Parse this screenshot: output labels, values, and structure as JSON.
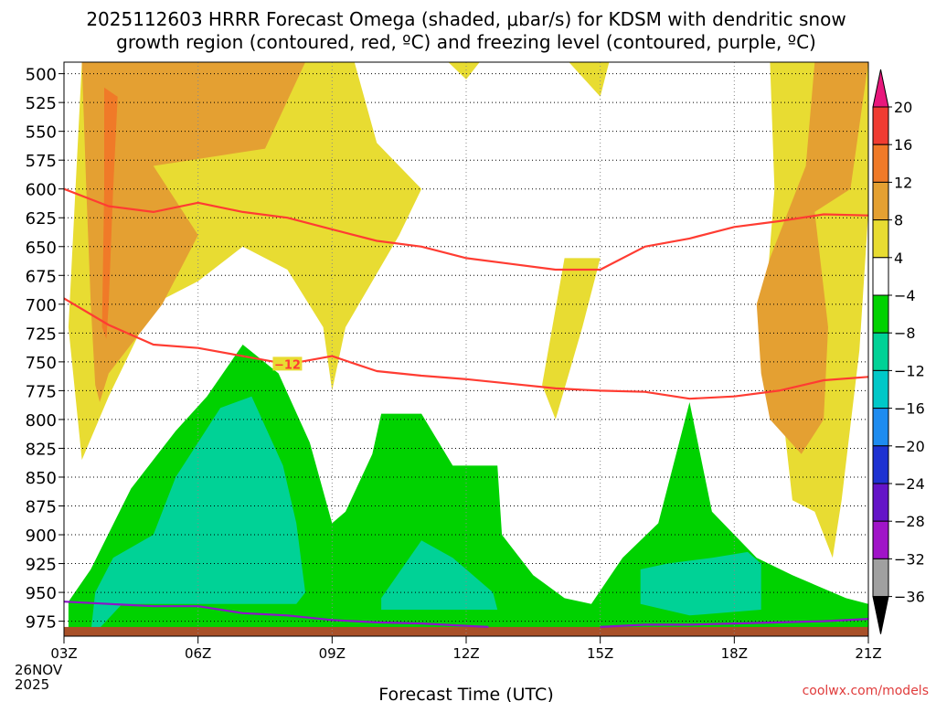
{
  "chart_data": {
    "type": "heatmap",
    "title_line1": "2025112603 HRRR Forecast Omega (shaded, μbar/s) for KDSM with dendritic snow",
    "title_line2": "growth region (contoured, red, ºC) and freezing level (contoured, purple, ºC)",
    "xlabel": "Forecast Time (UTC)",
    "credit": "coolwx.com/models",
    "x_ticks": [
      {
        "hour": 3,
        "label": "03Z"
      },
      {
        "hour": 6,
        "label": "06Z"
      },
      {
        "hour": 9,
        "label": "09Z"
      },
      {
        "hour": 12,
        "label": "12Z"
      },
      {
        "hour": 15,
        "label": "15Z"
      },
      {
        "hour": 18,
        "label": "18Z"
      },
      {
        "hour": 21,
        "label": "21Z"
      }
    ],
    "x_date_line1": "26NOV",
    "x_date_line2": "2025",
    "xlim": [
      3,
      21
    ],
    "y_ticks": [
      500,
      525,
      550,
      575,
      600,
      625,
      650,
      675,
      700,
      725,
      750,
      775,
      800,
      825,
      850,
      875,
      900,
      925,
      950,
      975
    ],
    "ylim": [
      490,
      988
    ],
    "ground_level_hPa": 980,
    "contour_label": "−12",
    "colorbar": {
      "labels": [
        "20",
        "16",
        "12",
        "8",
        "4",
        "−4",
        "−8",
        "−12",
        "−16",
        "−20",
        "−24",
        "−28",
        "−32",
        "−36"
      ],
      "bins": [
        {
          "range": "> 20",
          "color": "#e8187c"
        },
        {
          "range": "16 to 20",
          "color": "#f03c32"
        },
        {
          "range": "12 to 16",
          "color": "#f07a28"
        },
        {
          "range": "8 to 12",
          "color": "#e4a032"
        },
        {
          "range": "4 to 8",
          "color": "#e8dc32"
        },
        {
          "range": "-4 to 4",
          "color": "#ffffff"
        },
        {
          "range": "-8 to -4",
          "color": "#00d200"
        },
        {
          "range": "-12 to -8",
          "color": "#00d296"
        },
        {
          "range": "-16 to -12",
          "color": "#00c8c8"
        },
        {
          "range": "-20 to -16",
          "color": "#1e8cf0"
        },
        {
          "range": "-24 to -20",
          "color": "#1e32d2"
        },
        {
          "range": "-28 to -24",
          "color": "#6414c8"
        },
        {
          "range": "-32 to -28",
          "color": "#a014c8"
        },
        {
          "range": "-36 to -32",
          "color": "#a0a0a0"
        },
        {
          "range": "< -36",
          "color": "#000000"
        }
      ]
    },
    "shaded_regions": [
      {
        "name": "omega-positive-4-west",
        "color": "#e8dc32",
        "points": [
          [
            3.4,
            490
          ],
          [
            3.1,
            720
          ],
          [
            3.4,
            835
          ],
          [
            4.0,
            780
          ],
          [
            5.0,
            700
          ],
          [
            6.0,
            680
          ],
          [
            7.0,
            650
          ],
          [
            8.0,
            670
          ],
          [
            8.8,
            720
          ],
          [
            9.0,
            775
          ],
          [
            9.3,
            720
          ],
          [
            10.5,
            640
          ],
          [
            11.0,
            600
          ],
          [
            10.0,
            560
          ],
          [
            9.5,
            490
          ]
        ]
      },
      {
        "name": "omega-positive-4-top-mid",
        "color": "#e8dc32",
        "points": [
          [
            11.6,
            490
          ],
          [
            12.0,
            505
          ],
          [
            12.3,
            490
          ]
        ]
      },
      {
        "name": "omega-positive-4-top-right",
        "color": "#e8dc32",
        "points": [
          [
            14.3,
            490
          ],
          [
            15.0,
            520
          ],
          [
            15.2,
            490
          ]
        ]
      },
      {
        "name": "omega-positive-4-mid-1500",
        "color": "#e8dc32",
        "points": [
          [
            14.2,
            660
          ],
          [
            13.7,
            770
          ],
          [
            14.0,
            800
          ],
          [
            14.6,
            720
          ],
          [
            15.0,
            660
          ]
        ]
      },
      {
        "name": "omega-positive-4-east",
        "color": "#e8dc32",
        "points": [
          [
            18.8,
            490
          ],
          [
            18.9,
            600
          ],
          [
            18.7,
            700
          ],
          [
            19.1,
            800
          ],
          [
            19.3,
            870
          ],
          [
            19.8,
            880
          ],
          [
            20.2,
            920
          ],
          [
            20.4,
            870
          ],
          [
            20.8,
            740
          ],
          [
            21,
            620
          ],
          [
            21,
            490
          ]
        ]
      },
      {
        "name": "omega-positive-8-west",
        "color": "#e4a032",
        "points": [
          [
            3.4,
            490
          ],
          [
            3.5,
            600
          ],
          [
            3.6,
            700
          ],
          [
            3.7,
            770
          ],
          [
            3.8,
            785
          ],
          [
            4.0,
            760
          ],
          [
            5.2,
            700
          ],
          [
            6.0,
            640
          ],
          [
            5.0,
            580
          ],
          [
            7.5,
            565
          ],
          [
            8.4,
            490
          ]
        ]
      },
      {
        "name": "omega-positive-8-east",
        "color": "#e4a032",
        "points": [
          [
            19.8,
            490
          ],
          [
            19.6,
            580
          ],
          [
            18.8,
            660
          ],
          [
            18.5,
            700
          ],
          [
            18.6,
            760
          ],
          [
            18.8,
            800
          ],
          [
            19.5,
            830
          ],
          [
            20.0,
            800
          ],
          [
            20.1,
            720
          ],
          [
            19.8,
            620
          ],
          [
            20.6,
            600
          ],
          [
            21,
            490
          ]
        ]
      },
      {
        "name": "omega-positive-12-west",
        "color": "#f07a28",
        "points": [
          [
            3.9,
            512
          ],
          [
            4.2,
            520
          ],
          [
            4.1,
            600
          ],
          [
            4.0,
            700
          ],
          [
            3.95,
            730
          ],
          [
            3.85,
            720
          ],
          [
            3.9,
            600
          ]
        ]
      },
      {
        "name": "omega-negative-4",
        "color": "#00d200",
        "points": [
          [
            3.1,
            958
          ],
          [
            3.6,
            930
          ],
          [
            4.5,
            860
          ],
          [
            5.5,
            810
          ],
          [
            6.2,
            780
          ],
          [
            7.0,
            735
          ],
          [
            7.8,
            760
          ],
          [
            8.5,
            820
          ],
          [
            9.0,
            890
          ],
          [
            9.3,
            880
          ],
          [
            9.9,
            830
          ],
          [
            10.1,
            795
          ],
          [
            11.0,
            795
          ],
          [
            11.7,
            840
          ],
          [
            12.7,
            840
          ],
          [
            12.8,
            900
          ],
          [
            13.5,
            935
          ],
          [
            14.2,
            955
          ],
          [
            14.8,
            960
          ],
          [
            15.5,
            920
          ],
          [
            16.3,
            890
          ],
          [
            17.0,
            785
          ],
          [
            17.5,
            880
          ],
          [
            18.5,
            920
          ],
          [
            19.3,
            935
          ],
          [
            20.5,
            955
          ],
          [
            21,
            960
          ],
          [
            21,
            985
          ],
          [
            3.1,
            985
          ]
        ]
      },
      {
        "name": "omega-negative-8-left",
        "color": "#00d296",
        "points": [
          [
            3.6,
            985
          ],
          [
            3.7,
            950
          ],
          [
            4.1,
            920
          ],
          [
            5.0,
            900
          ],
          [
            5.5,
            850
          ],
          [
            6.5,
            790
          ],
          [
            7.2,
            780
          ],
          [
            7.9,
            840
          ],
          [
            8.2,
            890
          ],
          [
            8.4,
            950
          ],
          [
            8.2,
            960
          ],
          [
            4.3,
            960
          ],
          [
            3.7,
            985
          ]
        ]
      },
      {
        "name": "omega-negative-8-mid",
        "color": "#00d296",
        "points": [
          [
            10.1,
            955
          ],
          [
            11.0,
            905
          ],
          [
            11.7,
            920
          ],
          [
            12.6,
            950
          ],
          [
            12.7,
            965
          ],
          [
            10.1,
            965
          ]
        ]
      },
      {
        "name": "omega-negative-8-right",
        "color": "#00d296",
        "points": [
          [
            15.9,
            930
          ],
          [
            16.5,
            925
          ],
          [
            17.5,
            920
          ],
          [
            18.3,
            915
          ],
          [
            18.6,
            925
          ],
          [
            18.6,
            965
          ],
          [
            17.0,
            970
          ],
          [
            15.9,
            960
          ]
        ]
      }
    ],
    "dendritic_growth_contours": [
      {
        "color": "#ff3c32",
        "points": [
          [
            3,
            600
          ],
          [
            4,
            615
          ],
          [
            5,
            620
          ],
          [
            6,
            612
          ],
          [
            7,
            620
          ],
          [
            8,
            625
          ],
          [
            9,
            635
          ],
          [
            10,
            645
          ],
          [
            11,
            650
          ],
          [
            12,
            660
          ],
          [
            13,
            665
          ],
          [
            14,
            670
          ],
          [
            15,
            670
          ],
          [
            16,
            650
          ],
          [
            17,
            643
          ],
          [
            18,
            633
          ],
          [
            19,
            628
          ],
          [
            20,
            622
          ],
          [
            21,
            623
          ]
        ]
      },
      {
        "color": "#ff3c32",
        "points": [
          [
            3,
            695
          ],
          [
            4,
            718
          ],
          [
            5,
            735
          ],
          [
            6,
            738
          ],
          [
            7,
            745
          ],
          [
            8,
            752
          ],
          [
            9,
            745
          ],
          [
            10,
            758
          ],
          [
            11,
            762
          ],
          [
            12,
            765
          ],
          [
            13,
            769
          ],
          [
            14,
            773
          ],
          [
            15,
            775
          ],
          [
            16,
            776
          ],
          [
            17,
            782
          ],
          [
            18,
            780
          ],
          [
            19,
            775
          ],
          [
            20,
            766
          ],
          [
            21,
            763
          ]
        ]
      }
    ],
    "freezing_level_contours": [
      {
        "color": "#8c14c8",
        "points": [
          [
            3,
            958
          ],
          [
            4,
            960
          ],
          [
            5,
            962
          ],
          [
            6,
            962
          ],
          [
            7,
            968
          ],
          [
            8,
            970
          ],
          [
            9,
            974
          ],
          [
            10,
            976
          ],
          [
            11,
            977
          ],
          [
            12,
            979
          ],
          [
            12.5,
            980
          ]
        ]
      },
      {
        "color": "#8c14c8",
        "points": [
          [
            15,
            980
          ],
          [
            16,
            978
          ],
          [
            17,
            978
          ],
          [
            18,
            977
          ],
          [
            19,
            976
          ],
          [
            20,
            975
          ],
          [
            21,
            973
          ]
        ]
      }
    ],
    "ground_fill_color": "#a85028"
  }
}
